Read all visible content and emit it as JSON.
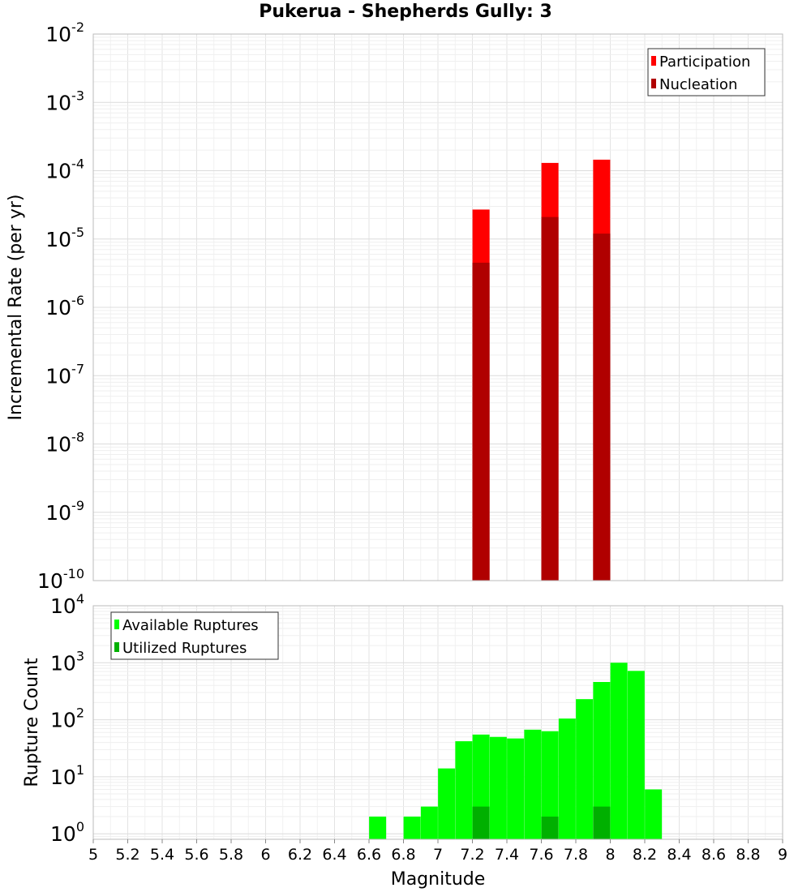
{
  "title": "Pukerua - Shepherds Gully: 3",
  "colors": {
    "participation": "#ff0000",
    "nucleation": "#b00000",
    "available": "#00ff00",
    "utilized": "#00b000",
    "grid": "#e6e6e6",
    "frame": "#bbbbbb"
  },
  "chart_data": [
    {
      "type": "bar",
      "title": "Pukerua - Shepherds Gully: 3",
      "xlabel": "Magnitude",
      "ylabel": "Incremental Rate (per yr)",
      "xlim": [
        5,
        9
      ],
      "ylim": [
        1e-10,
        0.01
      ],
      "yscale": "log",
      "grid": true,
      "legend_position": "top-right",
      "y_tick_labels": [
        {
          "base": "10",
          "exp": "-2"
        },
        {
          "base": "10",
          "exp": "-3"
        },
        {
          "base": "10",
          "exp": "-4"
        },
        {
          "base": "10",
          "exp": "-5"
        },
        {
          "base": "10",
          "exp": "-6"
        },
        {
          "base": "10",
          "exp": "-7"
        },
        {
          "base": "10",
          "exp": "-8"
        },
        {
          "base": "10",
          "exp": "-9"
        },
        {
          "base": "10",
          "exp": "-10"
        }
      ],
      "series": [
        {
          "name": "Participation",
          "x": [
            7.25,
            7.65,
            7.95
          ],
          "values": [
            2.7e-05,
            0.00013,
            0.000145
          ]
        },
        {
          "name": "Nucleation",
          "x": [
            7.25,
            7.65,
            7.95
          ],
          "values": [
            4.5e-06,
            2.1e-05,
            1.2e-05
          ]
        }
      ]
    },
    {
      "type": "bar",
      "xlabel": "Magnitude",
      "ylabel": "Rupture Count",
      "xlim": [
        5,
        9
      ],
      "ylim": [
        0.8,
        10000
      ],
      "yscale": "log",
      "grid": true,
      "legend_position": "top-left",
      "x_tick_labels": [
        "5",
        "5.2",
        "5.4",
        "5.6",
        "5.8",
        "6",
        "6.2",
        "6.4",
        "6.6",
        "6.8",
        "7",
        "7.2",
        "7.4",
        "7.6",
        "7.8",
        "8",
        "8.2",
        "8.4",
        "8.6",
        "8.8",
        "9"
      ],
      "y_tick_labels": [
        {
          "base": "10",
          "exp": "4"
        },
        {
          "base": "10",
          "exp": "3"
        },
        {
          "base": "10",
          "exp": "2"
        },
        {
          "base": "10",
          "exp": "1"
        },
        {
          "base": "10",
          "exp": "0"
        }
      ],
      "series": [
        {
          "name": "Available Ruptures",
          "x": [
            6.65,
            6.85,
            6.95,
            7.05,
            7.15,
            7.25,
            7.35,
            7.45,
            7.55,
            7.65,
            7.75,
            7.85,
            7.95,
            8.05,
            8.15,
            8.25
          ],
          "values": [
            2,
            2,
            3,
            14,
            42,
            55,
            50,
            47,
            67,
            63,
            105,
            230,
            460,
            1000,
            720,
            6
          ]
        },
        {
          "name": "Utilized Ruptures",
          "x": [
            7.25,
            7.65,
            7.95
          ],
          "values": [
            3,
            2,
            3
          ]
        }
      ]
    }
  ]
}
